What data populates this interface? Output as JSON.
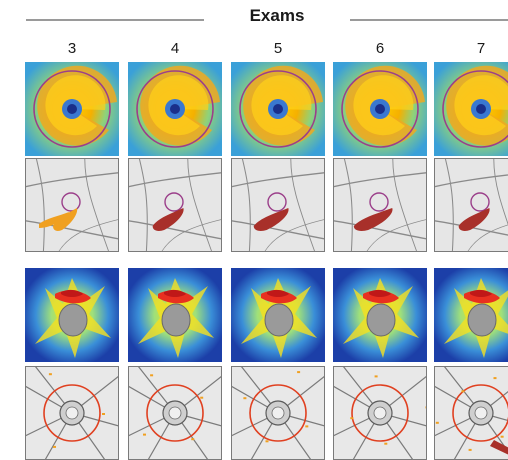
{
  "header": {
    "title": "Exams"
  },
  "exams": [
    {
      "label": "3"
    },
    {
      "label": "4"
    },
    {
      "label": "5"
    },
    {
      "label": "6"
    },
    {
      "label": "7"
    }
  ],
  "rows": [
    {
      "kind": "macular-thickness-map"
    },
    {
      "kind": "macular-fundus-change"
    },
    {
      "kind": "disc-thickness-map"
    },
    {
      "kind": "disc-fundus-change"
    }
  ],
  "colors": {
    "ring_purple": "#9b3f8a",
    "ring_red": "#e04020",
    "change_dark_red": "#a8302a",
    "change_orange": "#f0a020",
    "rule_gray": "#9a9a9a"
  },
  "change_levels": [
    {
      "exam": "3",
      "macular": 0.25,
      "disc": 0.1
    },
    {
      "exam": "4",
      "macular": 0.6,
      "disc": 0.25
    },
    {
      "exam": "5",
      "macular": 0.8,
      "disc": 0.2
    },
    {
      "exam": "6",
      "macular": 1.0,
      "disc": 0.2
    },
    {
      "exam": "7",
      "macular": 0.6,
      "disc": 0.55
    }
  ]
}
